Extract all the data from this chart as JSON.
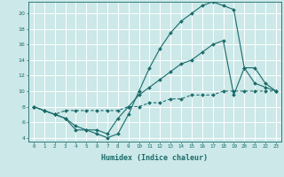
{
  "xlabel": "Humidex (Indice chaleur)",
  "bg_color": "#cce8e8",
  "line_color": "#1a6b6b",
  "grid_color": "#ffffff",
  "xlim": [
    -0.5,
    23.5
  ],
  "ylim": [
    3.5,
    21.5
  ],
  "yticks": [
    4,
    6,
    8,
    10,
    12,
    14,
    16,
    18,
    20
  ],
  "xticks": [
    0,
    1,
    2,
    3,
    4,
    5,
    6,
    7,
    8,
    9,
    10,
    11,
    12,
    13,
    14,
    15,
    16,
    17,
    18,
    19,
    20,
    21,
    22,
    23
  ],
  "line1_x": [
    0,
    1,
    2,
    3,
    4,
    5,
    6,
    7,
    8,
    9,
    10,
    11,
    12,
    13,
    14,
    15,
    16,
    17,
    18,
    19,
    20,
    21,
    22,
    23
  ],
  "line1_y": [
    8.0,
    7.5,
    7.0,
    6.5,
    5.0,
    5.0,
    4.5,
    4.0,
    4.5,
    7.0,
    10.0,
    13.0,
    15.5,
    17.5,
    19.0,
    20.0,
    21.0,
    21.5,
    21.0,
    20.5,
    13.0,
    11.0,
    10.5,
    10.0
  ],
  "line2_x": [
    0,
    1,
    2,
    3,
    4,
    5,
    6,
    7,
    8,
    9,
    10,
    11,
    12,
    13,
    14,
    15,
    16,
    17,
    18,
    19,
    20,
    21,
    22,
    23
  ],
  "line2_y": [
    8.0,
    7.5,
    7.0,
    6.5,
    5.5,
    5.0,
    5.0,
    4.5,
    6.5,
    8.0,
    9.5,
    10.5,
    11.5,
    12.5,
    13.5,
    14.0,
    15.0,
    16.0,
    16.5,
    9.5,
    13.0,
    13.0,
    11.0,
    10.0
  ],
  "line3_x": [
    0,
    1,
    2,
    3,
    4,
    5,
    6,
    7,
    8,
    9,
    10,
    11,
    12,
    13,
    14,
    15,
    16,
    17,
    18,
    19,
    20,
    21,
    22,
    23
  ],
  "line3_y": [
    8.0,
    7.5,
    7.0,
    7.5,
    7.5,
    7.5,
    7.5,
    7.5,
    7.5,
    8.0,
    8.0,
    8.5,
    8.5,
    9.0,
    9.0,
    9.5,
    9.5,
    9.5,
    10.0,
    10.0,
    10.0,
    10.0,
    10.0,
    10.0
  ]
}
